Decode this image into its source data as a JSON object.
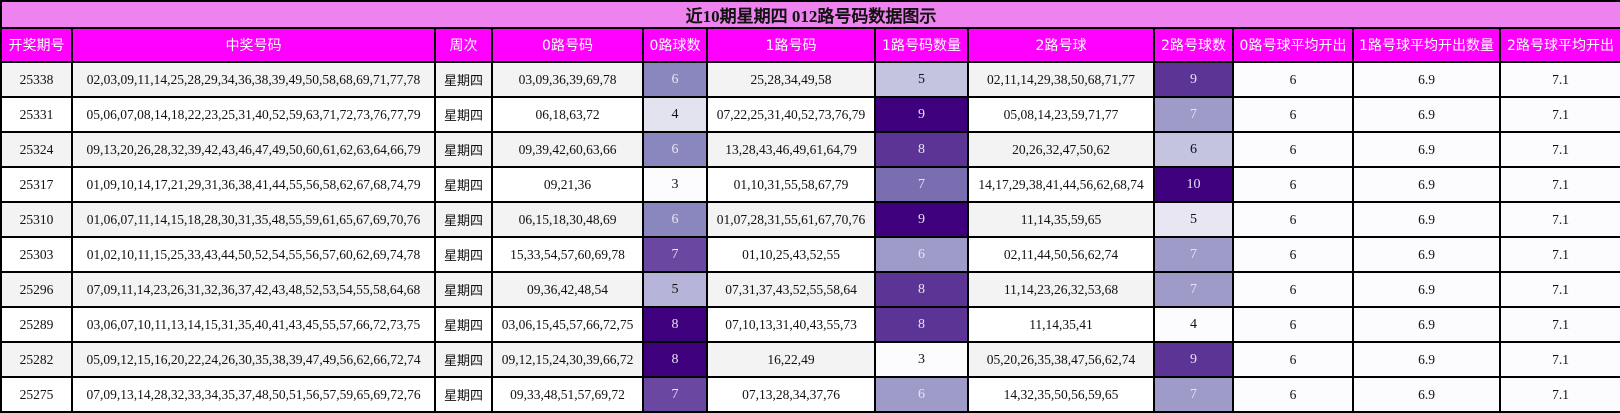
{
  "title": "近10期星期四 012路号码数据图示",
  "columns": [
    "开奖期号",
    "中奖号码",
    "周次",
    "0路号码",
    "0路球数",
    "1路号码",
    "1路号码数量",
    "2路号球",
    "2路号球数",
    "0路号球平均开出",
    "1路号球平均开出数量",
    "2路号球平均开出"
  ],
  "heat_colors": {
    "3": {
      "bg": "#fcfbfd",
      "fg": "#111111"
    },
    "4": {
      "bg": "#e3e2ef",
      "fg": "#111111"
    },
    "5": {
      "bg": "#c4c3e0",
      "fg": "#111111"
    },
    "6": {
      "bg": "#8a87bf",
      "fg": "#e6e4f4"
    },
    "7": {
      "bg": "#6a47a0",
      "fg": "#e6e4f4"
    },
    "8": {
      "bg": "#5c3496",
      "fg": "#e6e4f4"
    },
    "9": {
      "bg": "#3f007d",
      "fg": "#e6e4f4"
    },
    "10": {
      "bg": "#3f007d",
      "fg": "#e6e4f4"
    }
  },
  "rows": [
    {
      "issue": "25338",
      "numbers": "02,03,09,11,14,25,28,29,34,36,38,39,49,50,58,68,69,71,77,78",
      "weekday": "星期四",
      "r0": "03,09,36,39,69,78",
      "c0": "6",
      "r1": "25,28,34,49,58",
      "c1": "5",
      "r2": "02,11,14,29,38,50,68,71,77",
      "c2": "9",
      "avg0": "6",
      "avg1": "6.9",
      "avg2": "7.1",
      "c0_bg": "#8a87bf",
      "c0_fg": "#e6e4f4",
      "c1_bg": "#c4c3e0",
      "c1_fg": "#111111",
      "c2_bg": "#5c3496",
      "c2_fg": "#e6e4f4"
    },
    {
      "issue": "25331",
      "numbers": "05,06,07,08,14,18,22,23,25,31,40,52,59,63,71,72,73,76,77,79",
      "weekday": "星期四",
      "r0": "06,18,63,72",
      "c0": "4",
      "r1": "07,22,25,31,40,52,73,76,79",
      "c1": "9",
      "r2": "05,08,14,23,59,71,77",
      "c2": "7",
      "avg0": "6",
      "avg1": "6.9",
      "avg2": "7.1",
      "c0_bg": "#e3e2ef",
      "c0_fg": "#111111",
      "c1_bg": "#3f007d",
      "c1_fg": "#e6e4f4",
      "c2_bg": "#9e9bc9",
      "c2_fg": "#e6e4f4"
    },
    {
      "issue": "25324",
      "numbers": "09,13,20,26,28,32,39,42,43,46,47,49,50,60,61,62,63,64,66,79",
      "weekday": "星期四",
      "r0": "09,39,42,60,63,66",
      "c0": "6",
      "r1": "13,28,43,46,49,61,64,79",
      "c1": "8",
      "r2": "20,26,32,47,50,62",
      "c2": "6",
      "avg0": "6",
      "avg1": "6.9",
      "avg2": "7.1",
      "c0_bg": "#8a87bf",
      "c0_fg": "#e6e4f4",
      "c1_bg": "#5c3496",
      "c1_fg": "#e6e4f4",
      "c2_bg": "#c4c3e0",
      "c2_fg": "#111111"
    },
    {
      "issue": "25317",
      "numbers": "01,09,10,14,17,21,29,31,36,38,41,44,55,56,58,62,67,68,74,79",
      "weekday": "星期四",
      "r0": "09,21,36",
      "c0": "3",
      "r1": "01,10,31,55,58,67,79",
      "c1": "7",
      "r2": "14,17,29,38,41,44,56,62,68,74",
      "c2": "10",
      "avg0": "6",
      "avg1": "6.9",
      "avg2": "7.1",
      "c0_bg": "#fcfbfd",
      "c0_fg": "#111111",
      "c1_bg": "#7a6db0",
      "c1_fg": "#e6e4f4",
      "c2_bg": "#3f007d",
      "c2_fg": "#e6e4f4"
    },
    {
      "issue": "25310",
      "numbers": "01,06,07,11,14,15,18,28,30,31,35,48,55,59,61,65,67,69,70,76",
      "weekday": "星期四",
      "r0": "06,15,18,30,48,69",
      "c0": "6",
      "r1": "01,07,28,31,55,61,67,70,76",
      "c1": "9",
      "r2": "11,14,35,59,65",
      "c2": "5",
      "avg0": "6",
      "avg1": "6.9",
      "avg2": "7.1",
      "c0_bg": "#8a87bf",
      "c0_fg": "#e6e4f4",
      "c1_bg": "#3f007d",
      "c1_fg": "#e6e4f4",
      "c2_bg": "#e8e6f2",
      "c2_fg": "#111111"
    },
    {
      "issue": "25303",
      "numbers": "01,02,10,11,15,25,33,43,44,50,52,54,55,56,57,60,62,69,74,78",
      "weekday": "星期四",
      "r0": "15,33,54,57,60,69,78",
      "c0": "7",
      "r1": "01,10,25,43,52,55",
      "c1": "6",
      "r2": "02,11,44,50,56,62,74",
      "c2": "7",
      "avg0": "6",
      "avg1": "6.9",
      "avg2": "7.1",
      "c0_bg": "#6a47a0",
      "c0_fg": "#e6e4f4",
      "c1_bg": "#9e9bc9",
      "c1_fg": "#e6e4f4",
      "c2_bg": "#9e9bc9",
      "c2_fg": "#e6e4f4"
    },
    {
      "issue": "25296",
      "numbers": "07,09,11,14,23,26,31,32,36,37,42,43,48,52,53,54,55,58,64,68",
      "weekday": "星期四",
      "r0": "09,36,42,48,54",
      "c0": "5",
      "r1": "07,31,37,43,52,55,58,64",
      "c1": "8",
      "r2": "11,14,23,26,32,53,68",
      "c2": "7",
      "avg0": "6",
      "avg1": "6.9",
      "avg2": "7.1",
      "c0_bg": "#b6b5d9",
      "c0_fg": "#111111",
      "c1_bg": "#5c3496",
      "c1_fg": "#e6e4f4",
      "c2_bg": "#9e9bc9",
      "c2_fg": "#e6e4f4"
    },
    {
      "issue": "25289",
      "numbers": "03,06,07,10,11,13,14,15,31,35,40,41,43,45,55,57,66,72,73,75",
      "weekday": "星期四",
      "r0": "03,06,15,45,57,66,72,75",
      "c0": "8",
      "r1": "07,10,13,31,40,43,55,73",
      "c1": "8",
      "r2": "11,14,35,41",
      "c2": "4",
      "avg0": "6",
      "avg1": "6.9",
      "avg2": "7.1",
      "c0_bg": "#3f007d",
      "c0_fg": "#e6e4f4",
      "c1_bg": "#5c3496",
      "c1_fg": "#e6e4f4",
      "c2_bg": "#fcfbfd",
      "c2_fg": "#111111"
    },
    {
      "issue": "25282",
      "numbers": "05,09,12,15,16,20,22,24,26,30,35,38,39,47,49,56,62,66,72,74",
      "weekday": "星期四",
      "r0": "09,12,15,24,30,39,66,72",
      "c0": "8",
      "r1": "16,22,49",
      "c1": "3",
      "r2": "05,20,26,35,38,47,56,62,74",
      "c2": "9",
      "avg0": "6",
      "avg1": "6.9",
      "avg2": "7.1",
      "c0_bg": "#3f007d",
      "c0_fg": "#e6e4f4",
      "c1_bg": "#fcfbfd",
      "c1_fg": "#111111",
      "c2_bg": "#5c3496",
      "c2_fg": "#e6e4f4"
    },
    {
      "issue": "25275",
      "numbers": "07,09,13,14,28,32,33,34,35,37,48,50,51,56,57,59,65,69,72,76",
      "weekday": "星期四",
      "r0": "09,33,48,51,57,69,72",
      "c0": "7",
      "r1": "07,13,28,34,37,76",
      "c1": "6",
      "r2": "14,32,35,50,56,59,65",
      "c2": "7",
      "avg0": "6",
      "avg1": "6.9",
      "avg2": "7.1",
      "c0_bg": "#6a47a0",
      "c0_fg": "#e6e4f4",
      "c1_bg": "#9e9bc9",
      "c1_fg": "#e6e4f4",
      "c2_bg": "#9e9bc9",
      "c2_fg": "#e6e4f4"
    }
  ],
  "colors": {
    "title_bg": "#ee82ee",
    "header_bg": "#ff00ff",
    "header_fg": "#ffffff",
    "row_alt_bg": "#f3f3f3",
    "border": "#000000"
  }
}
